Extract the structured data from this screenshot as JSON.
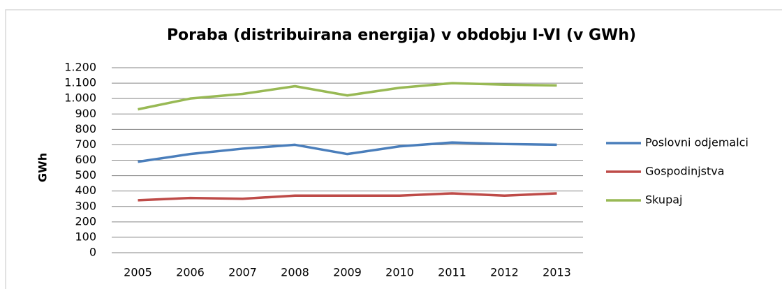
{
  "chart_data": {
    "type": "line",
    "title": "Poraba (distribuirana energija) v obdobju I-VI (v GWh)",
    "y_label": "GWh",
    "categories": [
      "2005",
      "2006",
      "2007",
      "2008",
      "2009",
      "2010",
      "2011",
      "2012",
      "2013"
    ],
    "series": [
      {
        "name": "Poslovni odjemalci",
        "color": "#4a7ebb",
        "values": [
          590,
          640,
          675,
          700,
          640,
          690,
          715,
          705,
          700
        ]
      },
      {
        "name": "Gospodinjstva",
        "color": "#be4b48",
        "values": [
          340,
          355,
          350,
          370,
          370,
          370,
          385,
          370,
          385
        ]
      },
      {
        "name": "Skupaj",
        "color": "#98b954",
        "values": [
          930,
          1000,
          1030,
          1080,
          1020,
          1070,
          1100,
          1090,
          1085
        ]
      }
    ],
    "ylim": [
      0,
      1200
    ],
    "yticks": [
      0,
      100,
      200,
      300,
      400,
      500,
      600,
      700,
      800,
      900,
      {
        "value": 1000,
        "label": "1.000"
      },
      {
        "value": 1100,
        "label": "1.100"
      },
      {
        "value": 1200,
        "label": "1.200"
      }
    ],
    "grid": true,
    "legend": "right"
  }
}
